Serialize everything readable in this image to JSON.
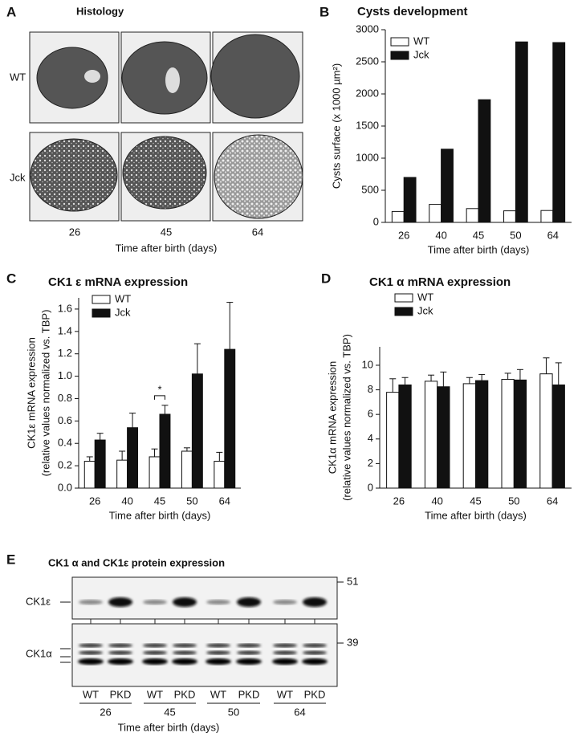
{
  "chart_data": [
    {
      "type": "bar",
      "panel": "B",
      "title": "Cysts development",
      "ylabel": [
        "Cysts surface (x 1000 µm²)"
      ],
      "xlabel": "Time after birth (days)",
      "categories": [
        "26",
        "40",
        "45",
        "50",
        "64"
      ],
      "series": [
        {
          "name": "WT",
          "color": "#ffffff",
          "values": [
            170,
            280,
            215,
            180,
            185
          ]
        },
        {
          "name": "Jck",
          "color": "#111111",
          "values": [
            700,
            1140,
            1910,
            2810,
            2800
          ]
        }
      ],
      "ylim": [
        0,
        3000
      ],
      "yticks": [
        0,
        500,
        1000,
        1500,
        2000,
        2500,
        3000
      ],
      "legend": "upper left"
    },
    {
      "type": "bar",
      "panel": "C",
      "title": "CK1 ε mRNA expression",
      "ylabel": [
        "CK1ε mRNA expression",
        "(relative values normalized vs. TBP)"
      ],
      "xlabel": "Time after birth (days)",
      "categories": [
        "26",
        "40",
        "45",
        "50",
        "64"
      ],
      "series": [
        {
          "name": "WT",
          "color": "#ffffff",
          "values": [
            0.24,
            0.25,
            0.28,
            0.33,
            0.24
          ],
          "errors": [
            0.04,
            0.08,
            0.07,
            0.03,
            0.08
          ]
        },
        {
          "name": "Jck",
          "color": "#111111",
          "values": [
            0.43,
            0.54,
            0.66,
            1.02,
            1.24
          ],
          "errors": [
            0.06,
            0.13,
            0.08,
            0.27,
            0.42
          ]
        }
      ],
      "annotation": "*",
      "ylim": [
        0,
        1.7
      ],
      "yticks": [
        {
          "value": 0,
          "label": "0.0"
        },
        0.2,
        0.4,
        0.6,
        0.8,
        {
          "value": 1,
          "label": "1.0"
        },
        1.2,
        1.4,
        1.6
      ],
      "legend": "upper left"
    },
    {
      "type": "bar",
      "panel": "D",
      "title": "CK1 α mRNA expression",
      "ylabel": [
        "CK1α mRNA expression",
        "(relative values normalized vs. TBP)"
      ],
      "xlabel": "Time after birth (days)",
      "categories": [
        "26",
        "40",
        "45",
        "50",
        "64"
      ],
      "series": [
        {
          "name": "WT",
          "color": "#ffffff",
          "values": [
            7.8,
            8.7,
            8.5,
            8.85,
            9.3
          ],
          "errors": [
            1.1,
            0.5,
            0.5,
            0.5,
            1.3
          ]
        },
        {
          "name": "Jck",
          "color": "#111111",
          "values": [
            8.4,
            8.25,
            8.75,
            8.8,
            8.4
          ],
          "errors": [
            0.6,
            1.2,
            0.5,
            0.85,
            1.8
          ]
        }
      ],
      "ylim": [
        0,
        11.5
      ],
      "yticks": [
        0,
        2,
        4,
        6,
        8,
        10
      ],
      "legend": "upper left"
    }
  ],
  "histology": {
    "panel": "A",
    "title": "Histology",
    "rows": [
      "WT",
      "Jck"
    ],
    "columns": [
      "26",
      "45",
      "64"
    ],
    "xlabel": "Time after birth (days)"
  },
  "blot": {
    "panel": "E",
    "title": "CK1 α and CK1ε protein expression",
    "rows": [
      "CK1ε",
      "CK1α"
    ],
    "markers": [
      "51",
      "39"
    ],
    "lanes": [
      "WT",
      "PKD",
      "WT",
      "PKD",
      "WT",
      "PKD",
      "WT",
      "PKD"
    ],
    "days": [
      "26",
      "45",
      "50",
      "64"
    ],
    "xlabel": "Time after birth (days)"
  }
}
